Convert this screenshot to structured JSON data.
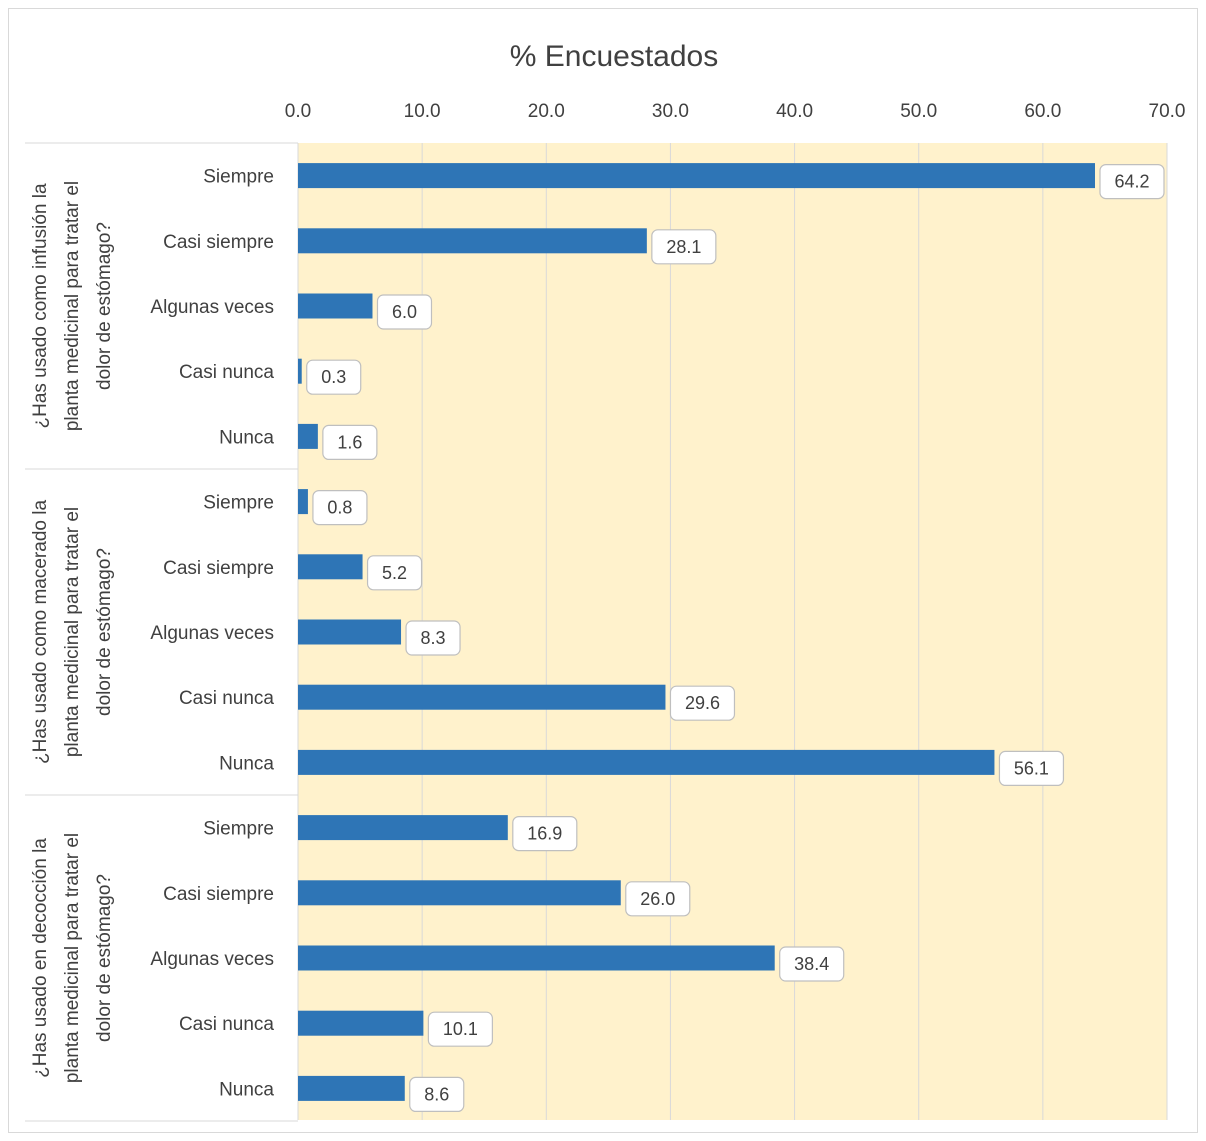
{
  "chart_data": {
    "type": "bar",
    "orientation": "horizontal",
    "title": "% Encuestados",
    "xlim": [
      0,
      70
    ],
    "ticks": [
      "0.0",
      "10.0",
      "20.0",
      "30.0",
      "40.0",
      "50.0",
      "60.0",
      "70.0"
    ],
    "tick_values": [
      0,
      10,
      20,
      30,
      40,
      50,
      60,
      70
    ],
    "grid": true,
    "legend": "none",
    "colors": {
      "bar": "#2E75B6",
      "plot_background": "#FFF2CC",
      "gridline": "#D9D9D9",
      "label_border": "#BFBFBF"
    },
    "groups": [
      {
        "label": "¿Has usado como infusión la planta medicinal para tratar el dolor de estómago?",
        "label_lines": [
          "¿Has usado como infusión la",
          "planta medicinal para tratar el",
          "dolor de estómago?"
        ],
        "categories": [
          "Siempre",
          "Casi siempre",
          "Algunas veces",
          "Casi nunca",
          "Nunca"
        ],
        "values": [
          64.2,
          28.1,
          6.0,
          0.3,
          1.6
        ],
        "value_labels": [
          "64.2",
          "28.1",
          "6.0",
          "0.3",
          "1.6"
        ]
      },
      {
        "label": "¿Has usado como macerado la planta medicinal para tratar el dolor de estómago?",
        "label_lines": [
          "¿Has usado como macerado la",
          "planta medicinal para tratar el",
          "dolor de estómago?"
        ],
        "categories": [
          "Siempre",
          "Casi siempre",
          "Algunas veces",
          "Casi nunca",
          "Nunca"
        ],
        "values": [
          0.8,
          5.2,
          8.3,
          29.6,
          56.1
        ],
        "value_labels": [
          "0.8",
          "5.2",
          "8.3",
          "29.6",
          "56.1"
        ]
      },
      {
        "label": "¿Has usado en decocción la planta medicinal para tratar el dolor de estómago?",
        "label_lines": [
          "¿Has usado en decocción la",
          "planta medicinal para tratar el",
          "dolor de estómago?"
        ],
        "categories": [
          "Siempre",
          "Casi siempre",
          "Algunas veces",
          "Casi nunca",
          "Nunca"
        ],
        "values": [
          16.9,
          26.0,
          38.4,
          10.1,
          8.6
        ],
        "value_labels": [
          "16.9",
          "26.0",
          "38.4",
          "10.1",
          "8.6"
        ]
      }
    ]
  }
}
